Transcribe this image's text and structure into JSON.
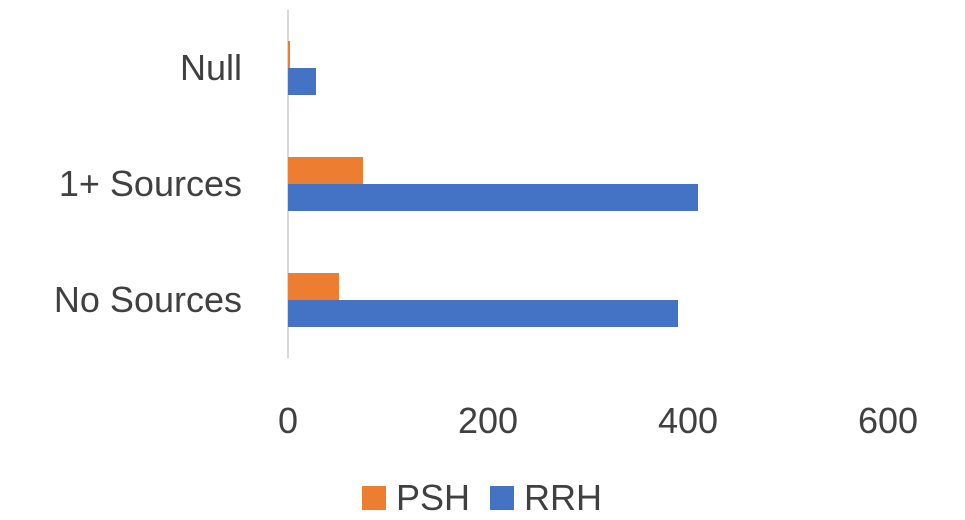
{
  "chart_data": {
    "type": "bar",
    "orientation": "horizontal",
    "categories": [
      "No Sources",
      "1+ Sources",
      "Null"
    ],
    "series": [
      {
        "name": "PSH",
        "values": [
          51,
          75,
          2
        ],
        "color": "#ED7D31"
      },
      {
        "name": "RRH",
        "values": [
          390,
          410,
          28
        ],
        "color": "#4472C4"
      }
    ],
    "x_ticks": [
      0,
      200,
      400,
      600
    ],
    "xlim": [
      0,
      600
    ],
    "grid": false,
    "legend_position": "bottom",
    "axis_color": "#d9d9d9"
  }
}
